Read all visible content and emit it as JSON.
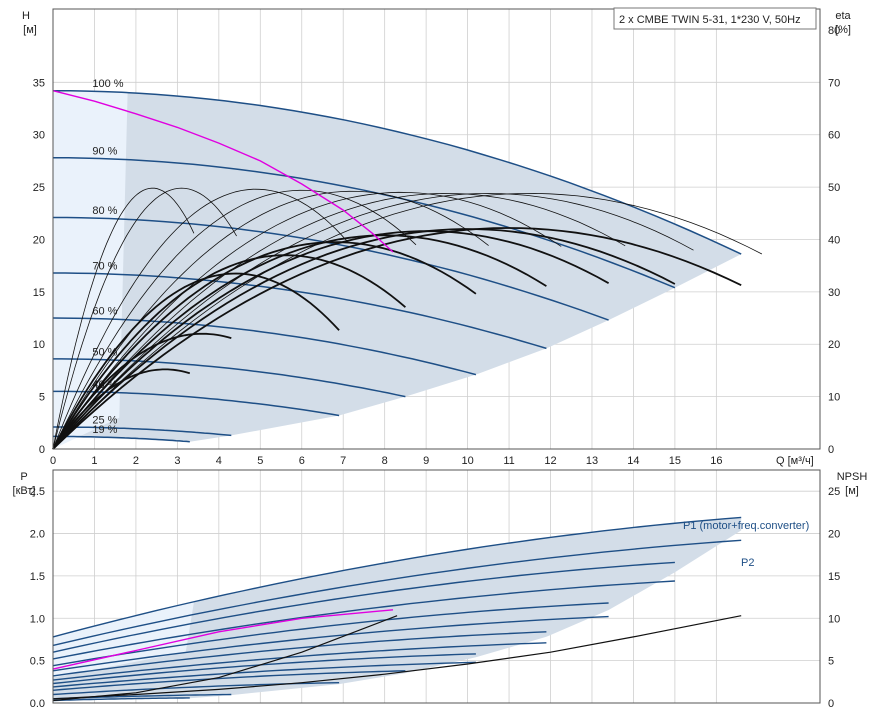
{
  "title": "2 x CMBE TWIN 5-31, 1*230 V, 50Hz",
  "colors": {
    "envelope": "#d3dde8",
    "envelope_light": "#eaf2fb",
    "curves": "#1e4f86",
    "operating_point": "#e000e0",
    "efficiency": "#111111",
    "grid": "#cfcfcf"
  },
  "chart_data": [
    {
      "type": "line",
      "name": "head",
      "xlabel": "Q [м³/ч]",
      "ylabel_line1": "H",
      "ylabel_line2": "[м]",
      "y2label_line1": "eta",
      "y2label_line2": "[%]",
      "xlim": [
        0,
        18.5
      ],
      "ylim": [
        0,
        42
      ],
      "y2lim": [
        0,
        84
      ],
      "xticks": [
        0,
        1,
        2,
        3,
        4,
        5,
        6,
        7,
        8,
        9,
        10,
        11,
        12,
        13,
        14,
        15,
        16
      ],
      "yticks": [
        0,
        5,
        10,
        15,
        20,
        25,
        30,
        35
      ],
      "y2ticks": [
        0,
        10,
        20,
        30,
        40,
        50,
        60,
        70,
        80
      ],
      "grid": true,
      "speed_curves": [
        {
          "label": "100 %",
          "shutoff": 34.2,
          "qmax": 16.6,
          "hend": 18.6
        },
        {
          "label": "90 %",
          "shutoff": 27.8,
          "qmax": 15.0,
          "hend": 15.4
        },
        {
          "label": "80 %",
          "shutoff": 22.1,
          "qmax": 13.4,
          "hend": 12.3
        },
        {
          "label": "70 %",
          "shutoff": 16.8,
          "qmax": 11.9,
          "hend": 9.6
        },
        {
          "label": "60 %",
          "shutoff": 12.5,
          "qmax": 10.2,
          "hend": 7.1
        },
        {
          "label": "50 %",
          "shutoff": 8.6,
          "qmax": 8.5,
          "hend": 5.0
        },
        {
          "label": "40 %",
          "shutoff": 5.5,
          "qmax": 6.9,
          "hend": 3.2
        },
        {
          "label": "25 %",
          "shutoff": 2.1,
          "qmax": 4.3,
          "hend": 1.3
        },
        {
          "label": "19 %",
          "shutoff": 1.2,
          "qmax": 3.3,
          "hend": 0.7
        }
      ],
      "efficiency_curves": [
        {
          "peak_q": 11.0,
          "peak_eta": 42.2,
          "qmax": 16.6,
          "weight": "bold"
        },
        {
          "peak_q": 10.0,
          "peak_eta": 42.0,
          "qmax": 15.0,
          "weight": "bold"
        },
        {
          "peak_q": 9.0,
          "peak_eta": 41.6,
          "qmax": 13.4,
          "weight": "bold"
        },
        {
          "peak_q": 8.0,
          "peak_eta": 40.8,
          "qmax": 11.9,
          "weight": "bold"
        },
        {
          "peak_q": 6.8,
          "peak_eta": 39.5,
          "qmax": 10.2,
          "weight": "bold"
        },
        {
          "peak_q": 5.6,
          "peak_eta": 37.0,
          "qmax": 8.5,
          "weight": "bold"
        },
        {
          "peak_q": 4.4,
          "peak_eta": 33.5,
          "qmax": 6.9,
          "weight": "bold"
        },
        {
          "peak_q": 3.6,
          "peak_eta": 22.0,
          "qmax": 4.3,
          "weight": "bold"
        },
        {
          "peak_q": 2.7,
          "peak_eta": 15.2,
          "qmax": 3.3,
          "weight": "bold"
        },
        {
          "peak_q": 11.5,
          "peak_eta": 48.8,
          "qmax": 16.6,
          "weight": "thin"
        },
        {
          "peak_q": 10.5,
          "peak_eta": 48.8,
          "qmax": 15.0,
          "weight": "thin"
        },
        {
          "peak_q": 9.5,
          "peak_eta": 48.8,
          "qmax": 13.4,
          "weight": "thin"
        },
        {
          "peak_q": 8.4,
          "peak_eta": 49.0,
          "qmax": 11.9,
          "weight": "thin"
        },
        {
          "peak_q": 7.2,
          "peak_eta": 49.2,
          "qmax": 10.2,
          "weight": "thin"
        },
        {
          "peak_q": 6.0,
          "peak_eta": 49.4,
          "qmax": 8.5,
          "weight": "thin"
        },
        {
          "peak_q": 4.9,
          "peak_eta": 49.6,
          "qmax": 6.9,
          "weight": "thin"
        },
        {
          "peak_q": 3.1,
          "peak_eta": 49.8,
          "qmax": 4.3,
          "weight": "thin"
        },
        {
          "peak_q": 2.4,
          "peak_eta": 49.8,
          "qmax": 3.3,
          "weight": "thin"
        }
      ],
      "operating_curve": {
        "x": [
          0,
          1,
          2,
          3,
          4,
          5,
          6,
          7,
          7.7,
          8.2
        ],
        "y": [
          34.2,
          33.2,
          32.0,
          30.7,
          29.2,
          27.5,
          25.3,
          22.8,
          20.6,
          18.8
        ]
      }
    },
    {
      "type": "line",
      "name": "power",
      "ylabel_line1": "P",
      "ylabel_line2": "[кВт]",
      "y2label_line1": "NPSH",
      "y2label_line2": "[м]",
      "xlim": [
        0,
        18.5
      ],
      "ylim": [
        0,
        2.75
      ],
      "y2lim": [
        0,
        27.5
      ],
      "yticks": [
        0.0,
        0.5,
        1.0,
        1.5,
        2.0,
        2.5
      ],
      "ytick_labels": [
        "0.0",
        "0.5",
        "1.0",
        "1.5",
        "2.0",
        "2.5"
      ],
      "y2ticks": [
        0,
        5,
        10,
        15,
        20,
        25
      ],
      "grid": true,
      "p1_label": "P1 (motor+freq.converter)",
      "p2_label": "P2",
      "p1_curves": [
        {
          "p0": 0.78,
          "qmax": 16.6,
          "pend": 2.19
        },
        {
          "p0": 0.6,
          "qmax": 15.0,
          "pend": 1.66
        },
        {
          "p0": 0.44,
          "qmax": 13.4,
          "pend": 1.18
        },
        {
          "p0": 0.32,
          "qmax": 11.9,
          "pend": 0.84
        },
        {
          "p0": 0.23,
          "qmax": 10.2,
          "pend": 0.58
        },
        {
          "p0": 0.15,
          "qmax": 8.5,
          "pend": 0.38
        },
        {
          "p0": 0.1,
          "qmax": 6.9,
          "pend": 0.24
        },
        {
          "p0": 0.05,
          "qmax": 4.3,
          "pend": 0.1
        },
        {
          "p0": 0.03,
          "qmax": 3.3,
          "pend": 0.06
        }
      ],
      "p2_curves": [
        {
          "p0": 0.68,
          "qmax": 16.6,
          "pend": 1.92
        },
        {
          "p0": 0.52,
          "qmax": 15.0,
          "pend": 1.44
        },
        {
          "p0": 0.38,
          "qmax": 13.4,
          "pend": 1.02
        },
        {
          "p0": 0.27,
          "qmax": 11.9,
          "pend": 0.71
        },
        {
          "p0": 0.19,
          "qmax": 10.2,
          "pend": 0.48
        }
      ],
      "operating_p1": {
        "x": [
          0,
          2,
          4,
          6,
          8.2
        ],
        "y": [
          0.4,
          0.62,
          0.84,
          1.0,
          1.1
        ]
      },
      "npsh_curve": {
        "x": [
          0,
          2,
          4,
          6,
          8,
          10,
          12,
          14,
          16.6
        ],
        "y": [
          0.5,
          1.0,
          1.6,
          2.4,
          3.4,
          4.6,
          6.0,
          7.8,
          10.3
        ]
      },
      "npsh_rise": {
        "x": [
          0,
          2,
          4,
          6,
          8.3
        ],
        "y": [
          0.3,
          1.2,
          3.0,
          6.0,
          10.3
        ]
      }
    }
  ]
}
